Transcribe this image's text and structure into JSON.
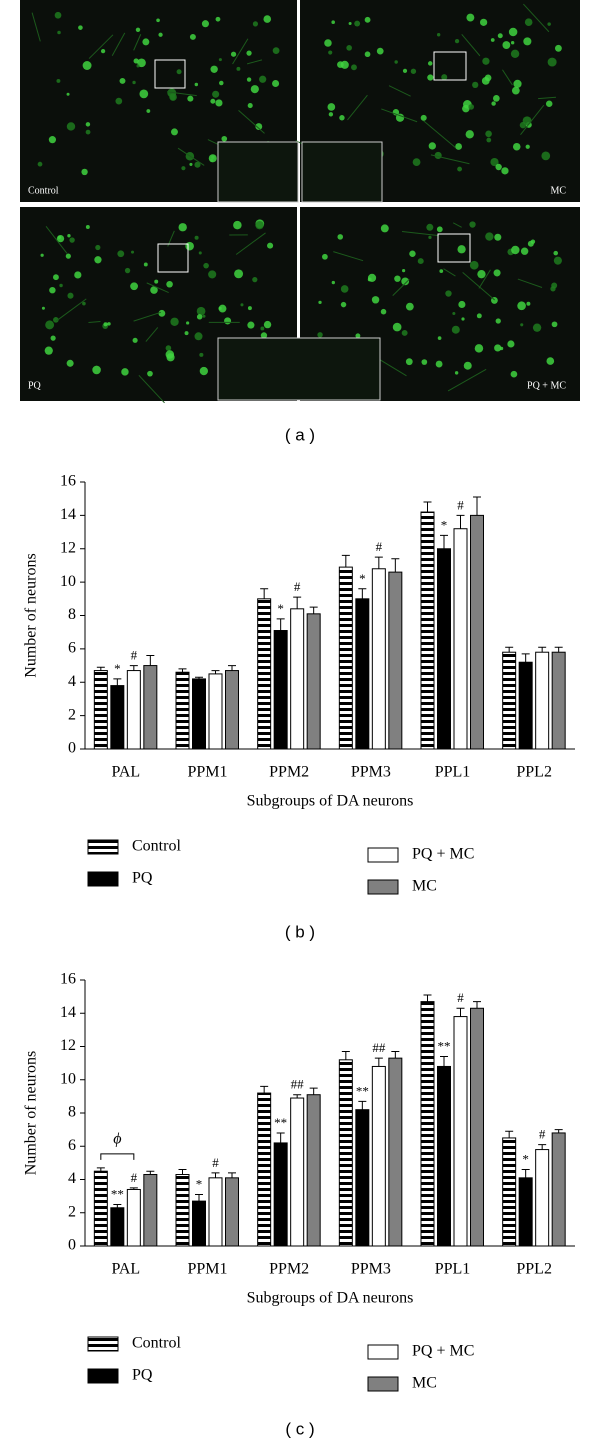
{
  "micrographs": {
    "labels": [
      "Control",
      "MC",
      "PQ",
      "PQ + MC"
    ],
    "caption": "( a )"
  },
  "chart_data": [
    {
      "type": "bar",
      "caption": "( b )",
      "y_label": "Number of neurons",
      "x_label": "Subgroups of DA neurons",
      "categories": [
        "PAL",
        "PPM1",
        "PPM2",
        "PPM3",
        "PPL1",
        "PPL2"
      ],
      "ylim": [
        0,
        16
      ],
      "yticks": [
        0,
        2,
        4,
        6,
        8,
        10,
        12,
        14,
        16
      ],
      "series": [
        {
          "name": "Control",
          "color": "#000000",
          "pattern": "stripes",
          "values": [
            4.7,
            4.6,
            9.0,
            10.9,
            14.2,
            5.8
          ],
          "errors": [
            0.2,
            0.2,
            0.6,
            0.7,
            0.6,
            0.3
          ],
          "annotations": [
            null,
            null,
            null,
            null,
            null,
            null
          ]
        },
        {
          "name": "PQ",
          "color": "#000000",
          "values": [
            3.8,
            4.2,
            7.1,
            9.0,
            12.0,
            5.2
          ],
          "errors": [
            0.4,
            0.1,
            0.7,
            0.6,
            0.8,
            0.5
          ],
          "annotations": [
            "*",
            null,
            "*",
            "*",
            "*",
            null
          ]
        },
        {
          "name": "PQ + MC",
          "color": "#ffffff",
          "values": [
            4.7,
            4.5,
            8.4,
            10.8,
            13.2,
            5.8
          ],
          "errors": [
            0.3,
            0.2,
            0.7,
            0.7,
            0.8,
            0.3
          ],
          "annotations": [
            "#",
            null,
            "#",
            "#",
            "#",
            null
          ]
        },
        {
          "name": "MC",
          "color": "#808080",
          "values": [
            5.0,
            4.7,
            8.1,
            10.6,
            14.0,
            5.8
          ],
          "errors": [
            0.6,
            0.3,
            0.4,
            0.8,
            1.1,
            0.3
          ],
          "annotations": [
            null,
            null,
            null,
            null,
            null,
            null
          ]
        }
      ]
    },
    {
      "type": "bar",
      "caption": "( c )",
      "y_label": "Number of neurons",
      "x_label": "Subgroups of DA neurons",
      "bracket_label": "ϕ",
      "categories": [
        "PAL",
        "PPM1",
        "PPM2",
        "PPM3",
        "PPL1",
        "PPL2"
      ],
      "ylim": [
        0,
        16
      ],
      "yticks": [
        0,
        2,
        4,
        6,
        8,
        10,
        12,
        14,
        16
      ],
      "series": [
        {
          "name": "Control",
          "color": "#000000",
          "pattern": "stripes",
          "values": [
            4.5,
            4.3,
            9.2,
            11.2,
            14.7,
            6.5
          ],
          "errors": [
            0.2,
            0.3,
            0.4,
            0.5,
            0.4,
            0.4
          ],
          "annotations": [
            null,
            null,
            null,
            null,
            null,
            null
          ]
        },
        {
          "name": "PQ",
          "color": "#000000",
          "values": [
            2.3,
            2.7,
            6.2,
            8.2,
            10.8,
            4.1
          ],
          "errors": [
            0.2,
            0.4,
            0.6,
            0.5,
            0.6,
            0.5
          ],
          "annotations": [
            "**",
            "*",
            "**",
            "**",
            "**",
            "*"
          ]
        },
        {
          "name": "PQ + MC",
          "color": "#ffffff",
          "values": [
            3.4,
            4.1,
            8.9,
            10.8,
            13.8,
            5.8
          ],
          "errors": [
            0.1,
            0.3,
            0.2,
            0.5,
            0.5,
            0.3
          ],
          "annotations": [
            "#",
            "#",
            "##",
            "##",
            "#",
            "#"
          ]
        },
        {
          "name": "MC",
          "color": "#808080",
          "values": [
            4.3,
            4.1,
            9.1,
            11.3,
            14.3,
            6.8
          ],
          "errors": [
            0.2,
            0.3,
            0.4,
            0.4,
            0.4,
            0.2
          ],
          "annotations": [
            null,
            null,
            null,
            null,
            null,
            null
          ]
        }
      ]
    }
  ]
}
